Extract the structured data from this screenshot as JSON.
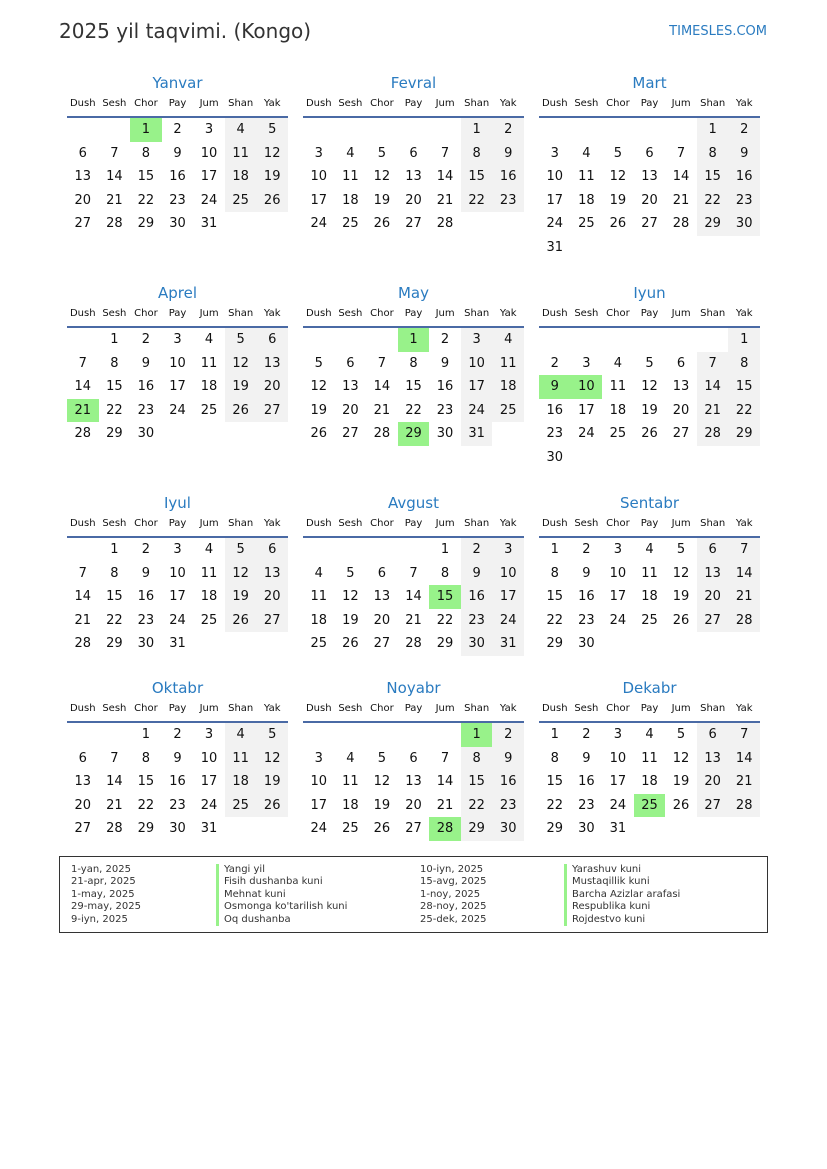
{
  "title": "2025 yil taqvimi. (Kongo)",
  "brand": "TIMESLES.COM",
  "year": 2025,
  "weekdays": [
    "Dush",
    "Sesh",
    "Chor",
    "Pay",
    "Jum",
    "Shan",
    "Yak"
  ],
  "months": [
    "Yanvar",
    "Fevral",
    "Mart",
    "Aprel",
    "May",
    "Iyun",
    "Iyul",
    "Avgust",
    "Sentabr",
    "Oktabr",
    "Noyabr",
    "Dekabr"
  ],
  "colors": {
    "holiday": "#98f28a",
    "weekend": "#f2f2f2",
    "accent": "#2a7bc0"
  },
  "holiday_dates": [
    [
      1,
      1
    ],
    [
      4,
      21
    ],
    [
      5,
      1
    ],
    [
      5,
      29
    ],
    [
      6,
      9
    ],
    [
      6,
      10
    ],
    [
      8,
      15
    ],
    [
      11,
      1
    ],
    [
      11,
      28
    ],
    [
      12,
      25
    ]
  ],
  "legend": [
    {
      "date": "1-yan, 2025",
      "name": "Yangi yil"
    },
    {
      "date": "21-apr, 2025",
      "name": "Fisih dushanba kuni"
    },
    {
      "date": "1-may, 2025",
      "name": "Mehnat kuni"
    },
    {
      "date": "29-may, 2025",
      "name": "Osmonga ko'tarilish kuni"
    },
    {
      "date": "9-iyn, 2025",
      "name": "Oq dushanba"
    },
    {
      "date": "10-iyn, 2025",
      "name": "Yarashuv kuni"
    },
    {
      "date": "15-avg, 2025",
      "name": "Mustaqillik kuni"
    },
    {
      "date": "1-noy, 2025",
      "name": "Barcha Azizlar arafasi"
    },
    {
      "date": "28-noy, 2025",
      "name": "Respublika kuni"
    },
    {
      "date": "25-dek, 2025",
      "name": "Rojdestvo kuni"
    }
  ]
}
